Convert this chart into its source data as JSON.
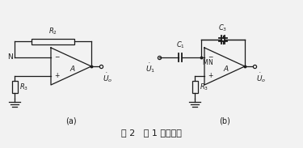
{
  "fig_label": "图 2   图 1 等效电路",
  "subfig_a_label": "(a)",
  "subfig_b_label": "(b)",
  "bg_color": "#f2f2f2",
  "line_color": "#1a1a1a",
  "figsize": [
    3.75,
    1.83
  ],
  "dpi": 100
}
